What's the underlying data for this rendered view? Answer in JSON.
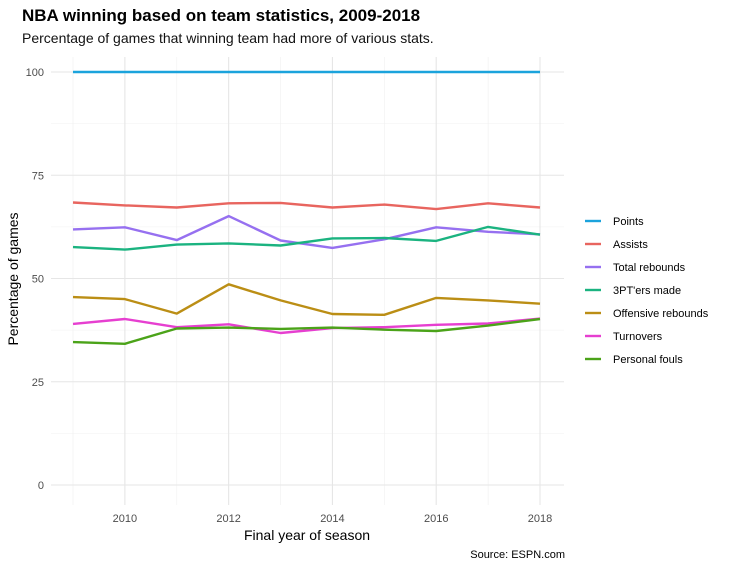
{
  "chart_data": {
    "type": "line",
    "title": "NBA winning based on team statistics, 2009-2018",
    "subtitle": "Percentage of games that winning team had more of various stats.",
    "xlabel": "Final year of season",
    "ylabel": "Percentage of games",
    "caption": "Source: ESPN.com",
    "xlim": [
      2009,
      2018
    ],
    "ylim": [
      0,
      100
    ],
    "x_ticks": [
      2010,
      2012,
      2014,
      2016,
      2018
    ],
    "y_ticks": [
      0,
      25,
      50,
      75,
      100
    ],
    "grid": true,
    "legend_position": "right",
    "x": [
      2009,
      2010,
      2011,
      2012,
      2013,
      2014,
      2015,
      2016,
      2017,
      2018
    ],
    "series": [
      {
        "name": "Points",
        "color": "#1BA3DC",
        "values": [
          100,
          100,
          100,
          100,
          100,
          100,
          100,
          100,
          100,
          100
        ]
      },
      {
        "name": "Assists",
        "color": "#E8655F",
        "values": [
          68.4,
          67.7,
          67.2,
          68.2,
          68.3,
          67.2,
          67.9,
          66.8,
          68.2,
          67.2
        ]
      },
      {
        "name": "Total rebounds",
        "color": "#9670F0",
        "values": [
          61.9,
          62.4,
          59.3,
          65.1,
          59.2,
          57.4,
          59.5,
          62.4,
          61.3,
          60.7
        ]
      },
      {
        "name": "3PT'ers made",
        "color": "#1BB380",
        "values": [
          57.6,
          57.0,
          58.2,
          58.5,
          58.0,
          59.7,
          59.8,
          59.1,
          62.5,
          60.6
        ]
      },
      {
        "name": "Offensive rebounds",
        "color": "#BB8E15",
        "values": [
          45.5,
          45.0,
          41.5,
          48.6,
          44.7,
          41.4,
          41.2,
          45.3,
          44.7,
          43.9
        ]
      },
      {
        "name": "Turnovers",
        "color": "#E63FD0",
        "values": [
          39.0,
          40.2,
          38.2,
          38.9,
          36.8,
          38.0,
          38.2,
          38.8,
          39.1,
          40.3
        ]
      },
      {
        "name": "Personal fouls",
        "color": "#4BA319",
        "values": [
          34.6,
          34.2,
          37.9,
          38.1,
          37.8,
          38.1,
          37.6,
          37.3,
          38.6,
          40.2
        ]
      }
    ]
  }
}
